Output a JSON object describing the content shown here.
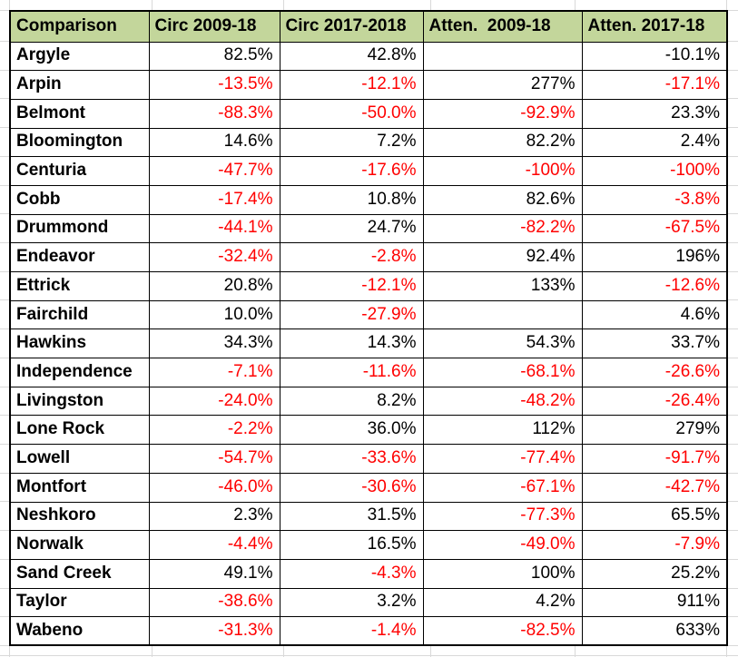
{
  "colors": {
    "header_bg": "#c3d69b",
    "negative_text": "#ff0000",
    "text": "#000000",
    "table_border": "#000000",
    "sheet_gridline": "#d9d9d9"
  },
  "table": {
    "columns": [
      "Comparison",
      "Circ 2009-18",
      "Circ 2017-2018",
      "Atten.  2009-18",
      "Atten. 2017-18"
    ],
    "rows": [
      {
        "name": "Argyle",
        "cells": [
          {
            "text": "82.5%",
            "red": false
          },
          {
            "text": "42.8%",
            "red": false
          },
          {
            "text": "",
            "red": false
          },
          {
            "text": "-10.1%",
            "red": false
          }
        ]
      },
      {
        "name": "Arpin",
        "cells": [
          {
            "text": "-13.5%",
            "red": true
          },
          {
            "text": "-12.1%",
            "red": true
          },
          {
            "text": "277%",
            "red": false
          },
          {
            "text": "-17.1%",
            "red": true
          }
        ]
      },
      {
        "name": "Belmont",
        "cells": [
          {
            "text": "-88.3%",
            "red": true
          },
          {
            "text": "-50.0%",
            "red": true
          },
          {
            "text": "-92.9%",
            "red": true
          },
          {
            "text": "23.3%",
            "red": false
          }
        ]
      },
      {
        "name": "Bloomington",
        "cells": [
          {
            "text": "14.6%",
            "red": false
          },
          {
            "text": "7.2%",
            "red": false
          },
          {
            "text": "82.2%",
            "red": false
          },
          {
            "text": "2.4%",
            "red": false
          }
        ]
      },
      {
        "name": "Centuria",
        "cells": [
          {
            "text": "-47.7%",
            "red": true
          },
          {
            "text": "-17.6%",
            "red": true
          },
          {
            "text": "-100%",
            "red": true
          },
          {
            "text": "-100%",
            "red": true
          }
        ]
      },
      {
        "name": "Cobb",
        "cells": [
          {
            "text": "-17.4%",
            "red": true
          },
          {
            "text": "10.8%",
            "red": false
          },
          {
            "text": "82.6%",
            "red": false
          },
          {
            "text": "-3.8%",
            "red": true
          }
        ]
      },
      {
        "name": "Drummond",
        "cells": [
          {
            "text": "-44.1%",
            "red": true
          },
          {
            "text": "24.7%",
            "red": false
          },
          {
            "text": "-82.2%",
            "red": true
          },
          {
            "text": "-67.5%",
            "red": true
          }
        ]
      },
      {
        "name": "Endeavor",
        "cells": [
          {
            "text": "-32.4%",
            "red": true
          },
          {
            "text": "-2.8%",
            "red": true
          },
          {
            "text": "92.4%",
            "red": false
          },
          {
            "text": "196%",
            "red": false
          }
        ]
      },
      {
        "name": "Ettrick",
        "cells": [
          {
            "text": "20.8%",
            "red": false
          },
          {
            "text": "-12.1%",
            "red": true
          },
          {
            "text": "133%",
            "red": false
          },
          {
            "text": "-12.6%",
            "red": true
          }
        ]
      },
      {
        "name": "Fairchild",
        "cells": [
          {
            "text": "10.0%",
            "red": false
          },
          {
            "text": "-27.9%",
            "red": true
          },
          {
            "text": "",
            "red": false
          },
          {
            "text": "4.6%",
            "red": false
          }
        ]
      },
      {
        "name": "Hawkins",
        "cells": [
          {
            "text": "34.3%",
            "red": false
          },
          {
            "text": "14.3%",
            "red": false
          },
          {
            "text": "54.3%",
            "red": false
          },
          {
            "text": "33.7%",
            "red": false
          }
        ]
      },
      {
        "name": "Independence",
        "cells": [
          {
            "text": "-7.1%",
            "red": true
          },
          {
            "text": "-11.6%",
            "red": true
          },
          {
            "text": "-68.1%",
            "red": true
          },
          {
            "text": "-26.6%",
            "red": true
          }
        ]
      },
      {
        "name": "Livingston",
        "cells": [
          {
            "text": "-24.0%",
            "red": true
          },
          {
            "text": "8.2%",
            "red": false
          },
          {
            "text": "-48.2%",
            "red": true
          },
          {
            "text": "-26.4%",
            "red": true
          }
        ]
      },
      {
        "name": "Lone Rock",
        "cells": [
          {
            "text": "-2.2%",
            "red": true
          },
          {
            "text": "36.0%",
            "red": false
          },
          {
            "text": "112%",
            "red": false
          },
          {
            "text": "279%",
            "red": false
          }
        ]
      },
      {
        "name": "Lowell",
        "cells": [
          {
            "text": "-54.7%",
            "red": true
          },
          {
            "text": "-33.6%",
            "red": true
          },
          {
            "text": "-77.4%",
            "red": true
          },
          {
            "text": "-91.7%",
            "red": true
          }
        ]
      },
      {
        "name": "Montfort",
        "cells": [
          {
            "text": "-46.0%",
            "red": true
          },
          {
            "text": "-30.6%",
            "red": true
          },
          {
            "text": "-67.1%",
            "red": true
          },
          {
            "text": "-42.7%",
            "red": true
          }
        ]
      },
      {
        "name": "Neshkoro",
        "cells": [
          {
            "text": "2.3%",
            "red": false
          },
          {
            "text": "31.5%",
            "red": false
          },
          {
            "text": "-77.3%",
            "red": true
          },
          {
            "text": "65.5%",
            "red": false
          }
        ]
      },
      {
        "name": "Norwalk",
        "cells": [
          {
            "text": "-4.4%",
            "red": true
          },
          {
            "text": "16.5%",
            "red": false
          },
          {
            "text": "-49.0%",
            "red": true
          },
          {
            "text": "-7.9%",
            "red": true
          }
        ]
      },
      {
        "name": "Sand Creek",
        "cells": [
          {
            "text": "49.1%",
            "red": false
          },
          {
            "text": "-4.3%",
            "red": true
          },
          {
            "text": "100%",
            "red": false
          },
          {
            "text": "25.2%",
            "red": false
          }
        ]
      },
      {
        "name": "Taylor",
        "cells": [
          {
            "text": "-38.6%",
            "red": true
          },
          {
            "text": "3.2%",
            "red": false
          },
          {
            "text": "4.2%",
            "red": false
          },
          {
            "text": "911%",
            "red": false
          }
        ]
      },
      {
        "name": "Wabeno",
        "cells": [
          {
            "text": "-31.3%",
            "red": true
          },
          {
            "text": "-1.4%",
            "red": true
          },
          {
            "text": "-82.5%",
            "red": true
          },
          {
            "text": "633%",
            "red": false
          }
        ]
      }
    ]
  }
}
